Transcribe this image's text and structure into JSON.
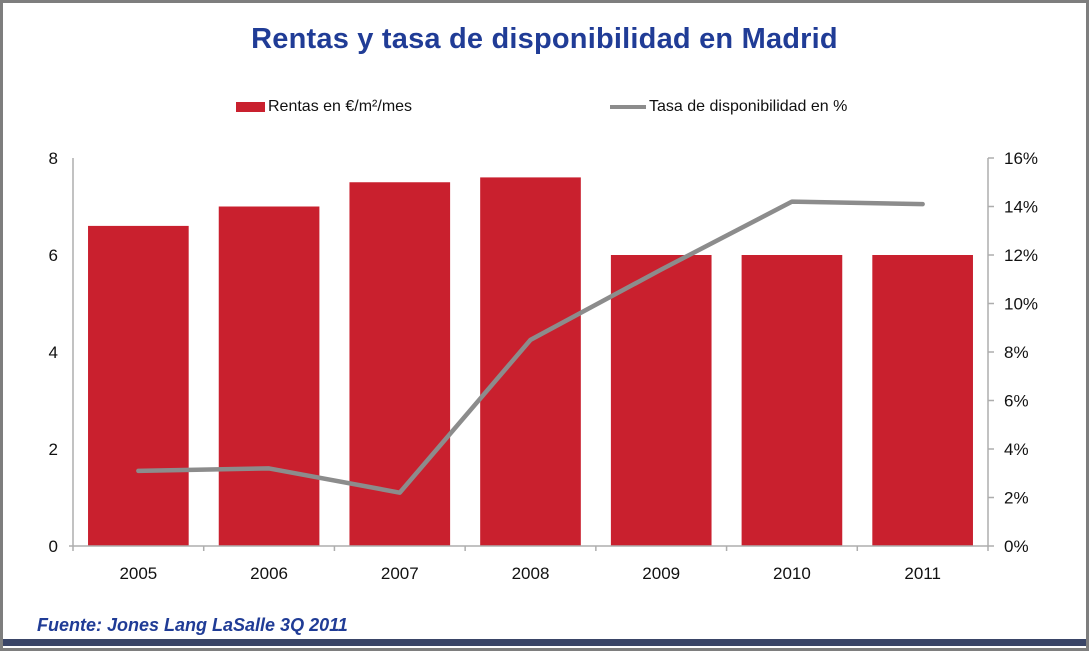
{
  "title": "Rentas y tasa de disponibilidad en Madrid",
  "source": "Fuente: Jones Lang LaSalle 3Q 2011",
  "legend": {
    "rentas_label": "Rentas en €/m²/mes",
    "tasa_label": "Tasa de disponibilidad en %"
  },
  "colors": {
    "bar_red": "#C9202E",
    "line_gray": "#8C8C8C",
    "axis_gray": "#ADADAD",
    "title_blue": "#203C96",
    "source_blue": "#203C96",
    "bottom_strip_navy": "#3A4567",
    "frame_border_gray": "#7E7E7E",
    "label_black": "#111111"
  },
  "chart_data": {
    "type": "bar",
    "subtype": "bar+line combo, dual axis",
    "title": "Rentas y tasa de disponibilidad en Madrid",
    "categories": [
      "2005",
      "2006",
      "2007",
      "2008",
      "2009",
      "2010",
      "2011"
    ],
    "series": [
      {
        "name": "Rentas en €/m²/mes",
        "type": "bar",
        "axis": "left",
        "color": "#C9202E",
        "values": [
          6.6,
          7.0,
          7.5,
          7.6,
          6.0,
          6.0,
          6.0
        ]
      },
      {
        "name": "Tasa de disponibilidad en %",
        "type": "line",
        "axis": "right",
        "color": "#8C8C8C",
        "values": [
          3.1,
          3.2,
          2.2,
          8.5,
          11.4,
          14.2,
          14.1
        ]
      }
    ],
    "left_axis": {
      "min": 0,
      "max": 8,
      "step": 2,
      "tick_labels": [
        "0",
        "2",
        "4",
        "6",
        "8"
      ]
    },
    "right_axis": {
      "min": 0,
      "max": 16,
      "step": 2,
      "tick_labels": [
        "0%",
        "2%",
        "4%",
        "6%",
        "8%",
        "10%",
        "12%",
        "14%",
        "16%"
      ]
    },
    "grid": false,
    "legend_position": "top"
  }
}
